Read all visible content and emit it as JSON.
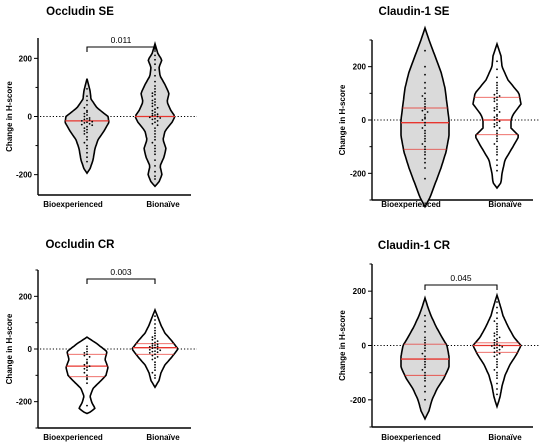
{
  "chart_data": [
    {
      "type": "violin",
      "title": "Occludin SE",
      "ylabel": "Change in H-score",
      "categories": [
        "Bioexperienced",
        "Bionaïve"
      ],
      "ylim": [
        -270,
        270
      ],
      "yticks": [
        "200",
        "0",
        "-200"
      ],
      "reference_line": 0,
      "comparison": {
        "label": "0.011",
        "groups": [
          "Bioexperienced",
          "Bionaïve"
        ]
      },
      "series": [
        {
          "category": "Bioexperienced",
          "min": -195,
          "max": 130,
          "median": -15,
          "points": [
            95,
            70,
            55,
            40,
            30,
            20,
            15,
            10,
            5,
            0,
            -5,
            -8,
            -10,
            -12,
            -15,
            -18,
            -20,
            -22,
            -25,
            -28,
            -30,
            -35,
            -40,
            -45,
            -50,
            -55,
            -60,
            -70,
            -80,
            -90,
            -100,
            -110,
            -125,
            -140,
            -155
          ]
        },
        {
          "category": "Bionaïve",
          "min": -240,
          "max": 250,
          "median": 0,
          "points": [
            210,
            195,
            180,
            160,
            140,
            120,
            105,
            95,
            85,
            80,
            75,
            70,
            60,
            55,
            50,
            45,
            40,
            35,
            30,
            25,
            20,
            15,
            10,
            8,
            5,
            3,
            0,
            -3,
            -5,
            -8,
            -10,
            -15,
            -20,
            -25,
            -30,
            -40,
            -50,
            -60,
            -70,
            -80,
            -90,
            -100,
            -110,
            -120,
            -130,
            -150,
            -170,
            -190,
            -205,
            -215
          ]
        }
      ]
    },
    {
      "type": "violin",
      "title": "Claudin-1 SE",
      "ylabel": "Change in H-score",
      "categories": [
        "Bioexperienced",
        "Bionaïve"
      ],
      "ylim": [
        -300,
        300
      ],
      "yticks": [
        "200",
        "0",
        "-200"
      ],
      "reference_line": 0,
      "series": [
        {
          "category": "Bioexperienced",
          "min": -325,
          "max": 345,
          "median": -10,
          "quartiles": [
            -110,
            45
          ],
          "points": [
            260,
            200,
            170,
            140,
            120,
            100,
            90,
            80,
            70,
            60,
            50,
            40,
            35,
            30,
            20,
            10,
            5,
            0,
            -10,
            -20,
            -30,
            -40,
            -50,
            -60,
            -70,
            -80,
            -90,
            -100,
            -110,
            -120,
            -130,
            -145,
            -160,
            -180,
            -220
          ]
        },
        {
          "category": "Bionaïve",
          "min": -255,
          "max": 285,
          "median": 0,
          "quartiles": [
            -55,
            85
          ],
          "points": [
            220,
            190,
            160,
            140,
            130,
            120,
            110,
            100,
            95,
            90,
            85,
            80,
            75,
            70,
            60,
            50,
            45,
            40,
            35,
            30,
            20,
            15,
            10,
            5,
            0,
            -5,
            -10,
            -15,
            -20,
            -25,
            -30,
            -40,
            -50,
            -60,
            -70,
            -80,
            -90,
            -100,
            -110,
            -120,
            -130,
            -150,
            -170,
            -190
          ]
        }
      ]
    },
    {
      "type": "violin",
      "title": "Occludin CR",
      "ylabel": "Change in H-score",
      "categories": [
        "Bioexperienced",
        "Bionaïve"
      ],
      "ylim": [
        -300,
        300
      ],
      "yticks": [
        "200",
        "0",
        "-200"
      ],
      "reference_line": 0,
      "comparison": {
        "label": "0.003",
        "groups": [
          "Bioexperienced",
          "Bionaïve"
        ]
      },
      "series": [
        {
          "category": "Bioexperienced",
          "min": -245,
          "max": 45,
          "median": -65,
          "quartiles": [
            -105,
            -20
          ],
          "points": [
            10,
            0,
            -10,
            -15,
            -20,
            -25,
            -30,
            -40,
            -50,
            -55,
            -60,
            -65,
            -70,
            -75,
            -80,
            -90,
            -100,
            -110,
            -115,
            -130,
            -215
          ]
        },
        {
          "category": "Bionaïve",
          "min": -145,
          "max": 148,
          "median": 5,
          "quartiles": [
            -20,
            20
          ],
          "points": [
            125,
            110,
            95,
            80,
            70,
            60,
            50,
            45,
            40,
            35,
            30,
            25,
            20,
            18,
            15,
            12,
            10,
            8,
            5,
            3,
            0,
            -3,
            -5,
            -8,
            -10,
            -12,
            -15,
            -20,
            -25,
            -30,
            -35,
            -40,
            -50,
            -60,
            -70,
            -80,
            -90,
            -100,
            -110
          ]
        }
      ]
    },
    {
      "type": "violin",
      "title": "Claudin-1 CR",
      "ylabel": "Change in H-score",
      "categories": [
        "Bioexperienced",
        "Bionaïve"
      ],
      "ylim": [
        -300,
        300
      ],
      "yticks": [
        "200",
        "0",
        "-200"
      ],
      "reference_line": 0,
      "comparison": {
        "label": "0.045",
        "groups": [
          "Bioexperienced",
          "Bionaïve"
        ]
      },
      "series": [
        {
          "category": "Bioexperienced",
          "min": -270,
          "max": 175,
          "median": -50,
          "quartiles": [
            -110,
            5
          ],
          "points": [
            110,
            90,
            70,
            50,
            30,
            20,
            10,
            0,
            -10,
            -20,
            -30,
            -40,
            -50,
            -60,
            -70,
            -80,
            -90,
            -100,
            -110,
            -120,
            -130,
            -150,
            -170,
            -200
          ]
        },
        {
          "category": "Bionaïve",
          "min": -225,
          "max": 185,
          "median": 0,
          "quartiles": [
            -25,
            10
          ],
          "points": [
            160,
            140,
            120,
            100,
            90,
            80,
            70,
            60,
            50,
            45,
            40,
            35,
            30,
            25,
            20,
            15,
            10,
            5,
            2,
            0,
            -2,
            -5,
            -8,
            -10,
            -15,
            -20,
            -25,
            -30,
            -35,
            -40,
            -50,
            -60,
            -70,
            -80,
            -90,
            -100,
            -110,
            -120,
            -140,
            -160,
            -180
          ]
        }
      ]
    }
  ],
  "colors": {
    "violin_fill": "#dadada",
    "violin_stroke": "#000000",
    "median": "#e8352e",
    "points": "#000000",
    "reference_line": "#000000"
  }
}
